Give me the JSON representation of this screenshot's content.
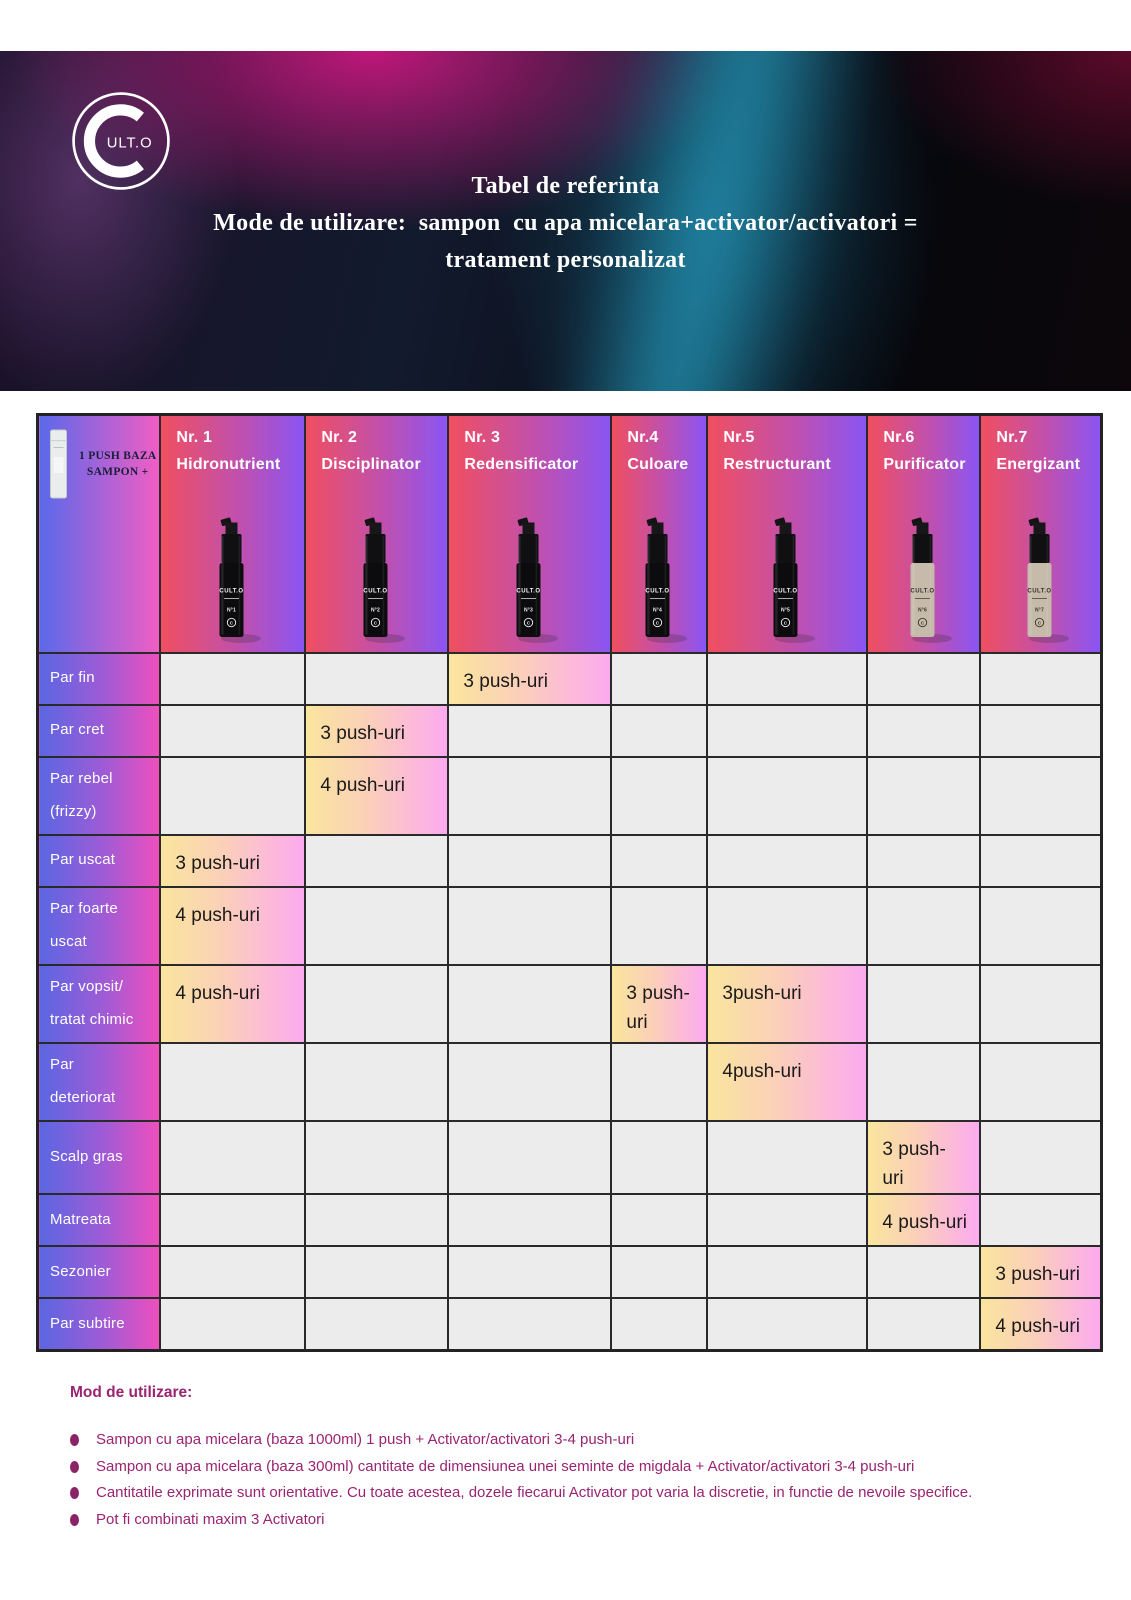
{
  "brand": "CULT.O",
  "hero": {
    "logo_c": "C",
    "logo_rest": "ULT.O",
    "title_line1": "Tabel de referinta",
    "title_line2": "Mode de utilizare:  sampon  cu apa micelara+activator/activatori =",
    "title_line3": "tratament personalizat"
  },
  "table": {
    "base_cell": {
      "line1": "1 PUSH BAZA",
      "line2": "SAMPON +"
    },
    "columns": [
      {
        "nr": "Nr. 1",
        "name": "Hidronutrient",
        "bottle": "black",
        "bottle_label": "N°1"
      },
      {
        "nr": "Nr. 2",
        "name": "Disciplinator",
        "bottle": "black",
        "bottle_label": "N°2"
      },
      {
        "nr": "Nr. 3",
        "name": "Redensificator",
        "bottle": "black",
        "bottle_label": "N°3"
      },
      {
        "nr": "Nr.4",
        "name": "Culoare",
        "bottle": "black",
        "bottle_label": "N°4"
      },
      {
        "nr": "Nr.5",
        "name": "Restructurant",
        "bottle": "black",
        "bottle_label": "N°5"
      },
      {
        "nr": "Nr.6",
        "name": "Purificator",
        "bottle": "beige",
        "bottle_label": "N°6"
      },
      {
        "nr": "Nr.7",
        "name": "Energizant",
        "bottle": "beige",
        "bottle_label": "N°7"
      }
    ],
    "rows": [
      {
        "label": "Par fin",
        "cells": [
          "",
          "",
          "3 push-uri",
          "",
          "",
          "",
          ""
        ]
      },
      {
        "label": "Par cret",
        "cells": [
          "",
          "3 push-uri",
          "",
          "",
          "",
          "",
          ""
        ]
      },
      {
        "label": "Par rebel\n(frizzy)",
        "cells": [
          "",
          "4 push-uri",
          "",
          "",
          "",
          "",
          ""
        ]
      },
      {
        "label": "Par uscat",
        "cells": [
          "3 push-uri",
          "",
          "",
          "",
          "",
          "",
          ""
        ]
      },
      {
        "label": "Par foarte\nuscat",
        "cells": [
          "4 push-uri",
          "",
          "",
          "",
          "",
          "",
          ""
        ]
      },
      {
        "label": "Par vopsit/\ntratat chimic",
        "cells": [
          "4 push-uri",
          "",
          "",
          "3 push-uri",
          "3push-uri",
          "",
          ""
        ]
      },
      {
        "label": "Par\ndeteriorat",
        "cells": [
          "",
          "",
          "",
          "",
          "4push-uri",
          "",
          ""
        ]
      },
      {
        "label": "Scalp gras",
        "cells": [
          "",
          "",
          "",
          "",
          "",
          "3 push-  uri",
          ""
        ]
      },
      {
        "label": "Matreata",
        "cells": [
          "",
          "",
          "",
          "",
          "",
          "4 push-uri",
          ""
        ]
      },
      {
        "label": "Sezonier",
        "cells": [
          "",
          "",
          "",
          "",
          "",
          "",
          "3 push-uri"
        ]
      },
      {
        "label": "Par subtire",
        "cells": [
          "",
          "",
          "",
          "",
          "",
          "",
          "4 push-uri"
        ]
      }
    ]
  },
  "footer": {
    "title": "Mod de utilizare:",
    "bullets": [
      "Sampon cu apa micelara (baza 1000ml) 1 push + Activator/activatori 3-4 push-uri",
      "Sampon cu apa micelara (baza 300ml) cantitate de dimensiunea unei seminte de migdala + Activator/activatori 3-4 push-uri",
      "Cantitatile exprimate sunt orientative. Cu toate acestea, dozele fiecarui Activator pot varia la discretie, in functie de nevoile specifice.",
      "Pot fi combinati maxim 3 Activatori"
    ]
  },
  "colors": {
    "accent_magenta": "#9a2472",
    "header_gradient_left": "#f04f60",
    "header_gradient_right": "#8a55f3",
    "label_gradient_left": "#5b66e3",
    "label_gradient_right": "#ef4fbe",
    "filled_gradient_left": "#fae59d",
    "filled_gradient_right": "#fcaaf0",
    "empty_cell": "#ececec"
  }
}
